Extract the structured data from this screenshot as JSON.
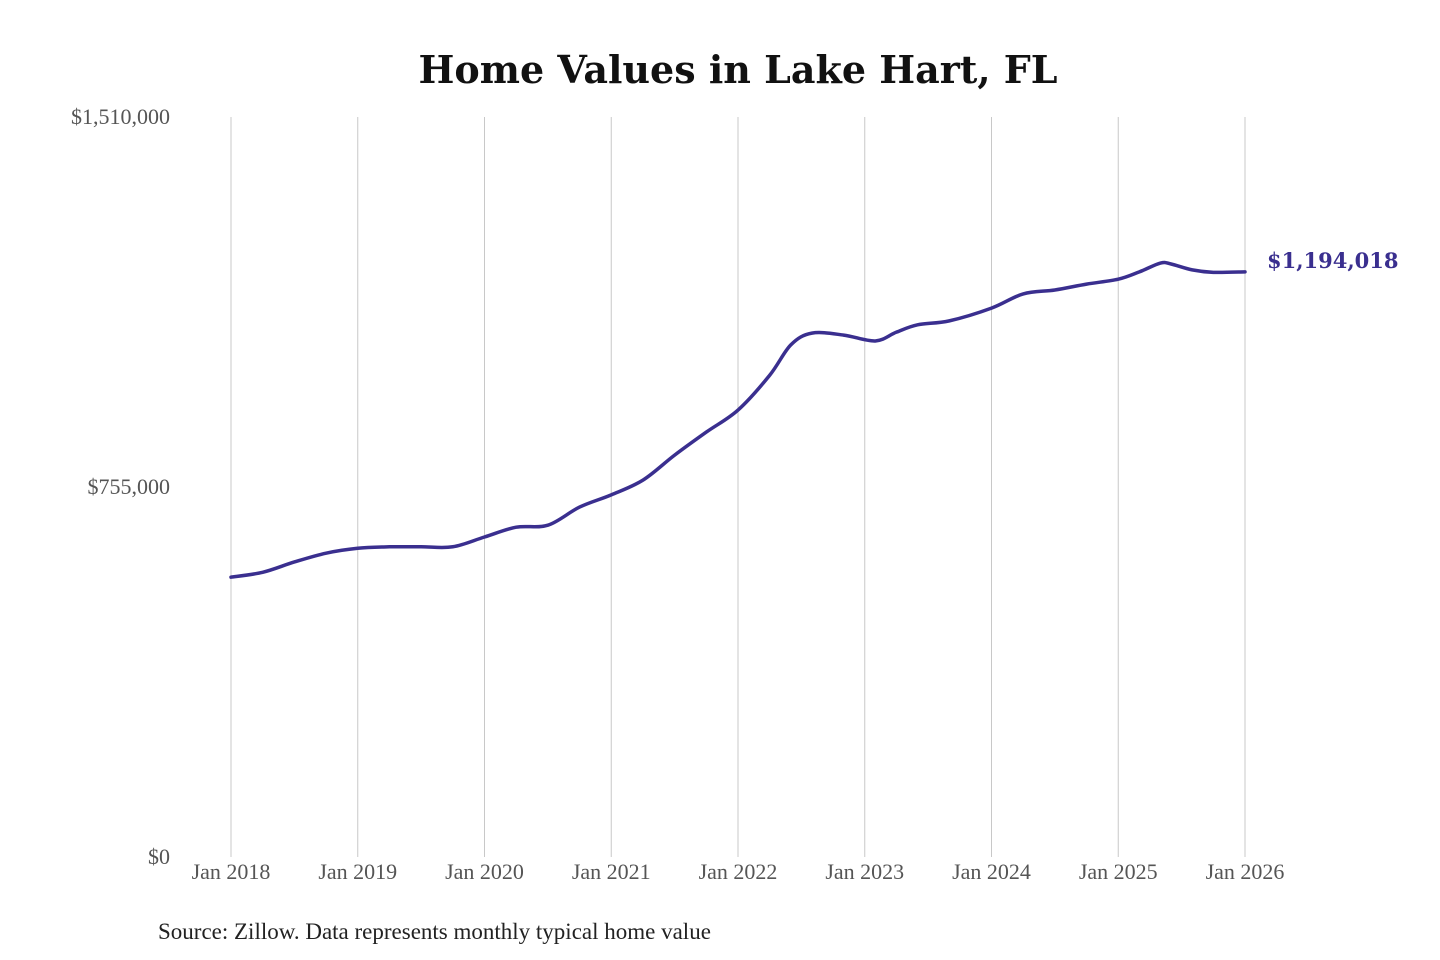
{
  "chart_data": {
    "type": "line",
    "title": "Home Values in Lake Hart, FL",
    "source": "Source: Zillow. Data represents monthly typical home value",
    "xlabel": "",
    "ylabel": "",
    "ylim": [
      0,
      1510000
    ],
    "xlim": [
      "2018-01",
      "2026-01"
    ],
    "y_ticks": [
      {
        "value": 0,
        "label": "$0"
      },
      {
        "value": 755000,
        "label": "$755,000"
      },
      {
        "value": 1510000,
        "label": "$1,510,000"
      }
    ],
    "x_ticks": [
      {
        "value": "2018-01",
        "label": "Jan 2018"
      },
      {
        "value": "2019-01",
        "label": "Jan 2019"
      },
      {
        "value": "2020-01",
        "label": "Jan 2020"
      },
      {
        "value": "2021-01",
        "label": "Jan 2021"
      },
      {
        "value": "2022-01",
        "label": "Jan 2022"
      },
      {
        "value": "2023-01",
        "label": "Jan 2023"
      },
      {
        "value": "2024-01",
        "label": "Jan 2024"
      },
      {
        "value": "2025-01",
        "label": "Jan 2025"
      },
      {
        "value": "2026-01",
        "label": "Jan 2026"
      }
    ],
    "grid": "vertical",
    "line_color": "#3a2f8f",
    "end_label": "$1,194,018",
    "series": [
      {
        "x": [
          "2018-01",
          "2018-04",
          "2018-07",
          "2018-10",
          "2019-01",
          "2019-04",
          "2019-07",
          "2019-10",
          "2020-01",
          "2020-04",
          "2020-07",
          "2020-10",
          "2021-01",
          "2021-04",
          "2021-07",
          "2021-10",
          "2022-01",
          "2022-04",
          "2022-06",
          "2022-08",
          "2022-11",
          "2023-02",
          "2023-04",
          "2023-06",
          "2023-09",
          "2024-01",
          "2024-04",
          "2024-07",
          "2024-10",
          "2025-01",
          "2025-03",
          "2025-05",
          "2025-06",
          "2025-08",
          "2025-10",
          "2026-01"
        ],
        "values": [
          571000,
          581000,
          602000,
          620000,
          630000,
          633000,
          633000,
          633000,
          653000,
          673000,
          677000,
          714000,
          739000,
          769000,
          820000,
          867000,
          912000,
          983000,
          1045000,
          1069000,
          1065000,
          1053000,
          1071000,
          1086000,
          1094000,
          1120000,
          1149000,
          1157000,
          1169000,
          1179000,
          1194000,
          1212000,
          1210000,
          1198000,
          1193000,
          1194018
        ]
      }
    ]
  }
}
